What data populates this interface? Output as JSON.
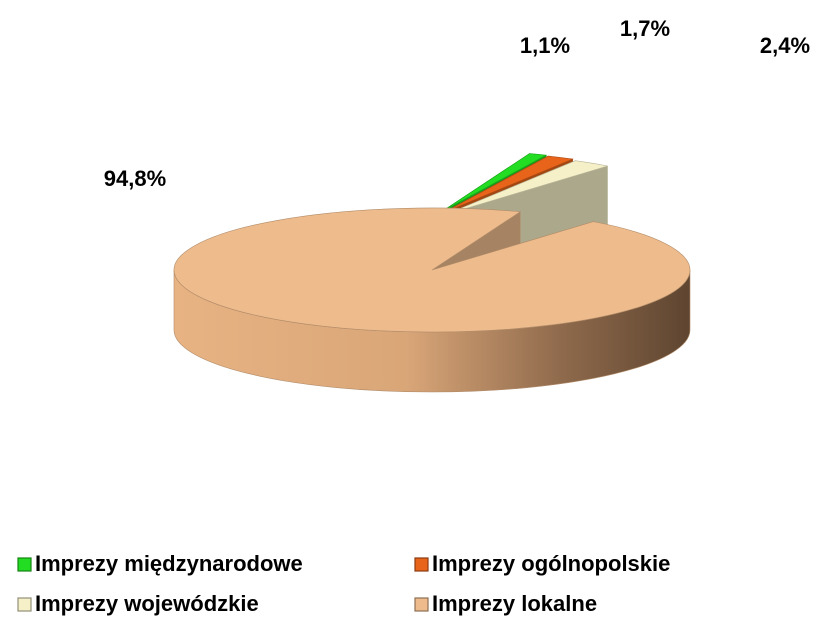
{
  "chart_data": {
    "type": "pie",
    "categories": [
      "Imprezy międzynarodowe",
      "Imprezy ogólnopolskie",
      "Imprezy wojewódzkie",
      "Imprezy lokalne"
    ],
    "values": [
      1.1,
      1.7,
      2.4,
      94.8
    ],
    "value_labels": [
      "1,1%",
      "1,7%",
      "2,4%",
      "94,8%"
    ],
    "colors": [
      "#22dd22",
      "#e8641a",
      "#f5f0c8",
      "#edbb8c"
    ]
  }
}
